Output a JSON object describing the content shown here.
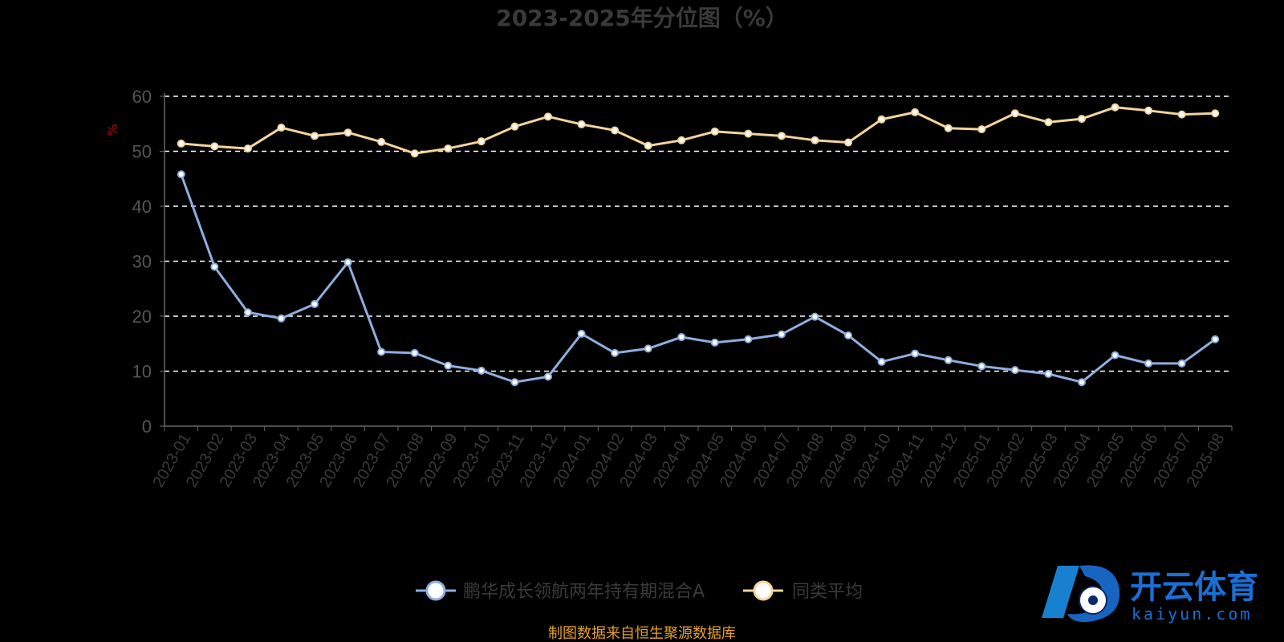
{
  "chart_data": {
    "type": "line",
    "title": "2023-2025年分位图（%）",
    "ylabel": "%",
    "ylim": [
      0,
      60
    ],
    "yticks": [
      0,
      10,
      20,
      30,
      40,
      50,
      60
    ],
    "grid": true,
    "legend_position": "bottom",
    "categories": [
      "2023-01",
      "2023-02",
      "2023-03",
      "2023-04",
      "2023-05",
      "2023-06",
      "2023-07",
      "2023-08",
      "2023-09",
      "2023-10",
      "2023-11",
      "2023-12",
      "2024-01",
      "2024-02",
      "2024-03",
      "2024-04",
      "2024-05",
      "2024-06",
      "2024-07",
      "2024-08",
      "2024-09",
      "2024-10",
      "2024-11",
      "2024-12",
      "2025-01",
      "2025-02",
      "2025-03",
      "2025-04",
      "2025-05",
      "2025-06",
      "2025-07",
      "2025-08"
    ],
    "series": [
      {
        "name": "鹏华成长领航两年持有期混合A",
        "color": "#8eaee0",
        "values": [
          45.8,
          29.0,
          20.7,
          19.6,
          22.2,
          29.8,
          13.5,
          13.3,
          11.0,
          10.1,
          8.0,
          9.0,
          16.8,
          13.3,
          14.1,
          16.2,
          15.2,
          15.8,
          16.7,
          19.9,
          16.5,
          11.7,
          13.2,
          12.0,
          10.9,
          10.2,
          9.5,
          8.0,
          12.9,
          11.4,
          11.4,
          15.8
        ]
      },
      {
        "name": "同类平均",
        "color": "#f5d49a",
        "values": [
          51.4,
          50.9,
          50.5,
          54.3,
          52.8,
          53.4,
          51.7,
          49.6,
          50.5,
          51.8,
          54.5,
          56.3,
          54.9,
          53.8,
          51.0,
          52.0,
          53.6,
          53.2,
          52.8,
          52.0,
          51.6,
          55.8,
          57.1,
          54.2,
          54.0,
          56.9,
          55.3,
          55.9,
          58.0,
          57.4,
          56.7,
          56.9
        ]
      }
    ]
  },
  "footer": "制图数据来自恒生聚源数据库",
  "watermark": {
    "name": "开云体育",
    "domain": "kaiyun.com",
    "color": "#1a6fd6"
  }
}
